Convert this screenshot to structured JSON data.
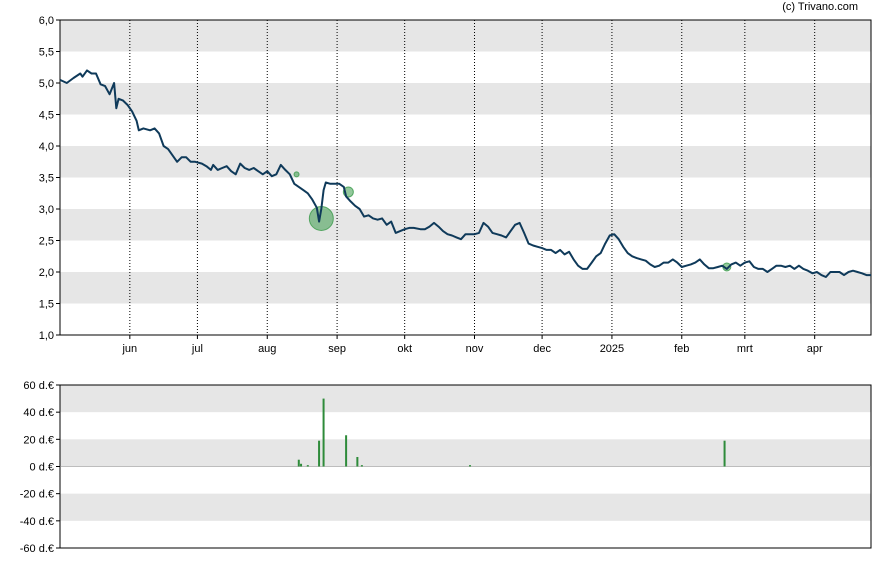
{
  "credit": "(c) Trivano.com",
  "colors": {
    "band": "#e6e6e6",
    "line": "#0f3a5a",
    "volume": "#2e8b3a",
    "marker": "#3a9a4a"
  },
  "chart_data": [
    {
      "type": "line",
      "title": "",
      "ylim": [
        1.0,
        6.0
      ],
      "y_ticks": [
        "1,0",
        "1,5",
        "2,0",
        "2,5",
        "3,0",
        "3,5",
        "4,0",
        "4,5",
        "5,0",
        "5,5",
        "6,0"
      ],
      "x_ticks": [
        {
          "label": "jun",
          "day": 31
        },
        {
          "label": "jul",
          "day": 61
        },
        {
          "label": "aug",
          "day": 92
        },
        {
          "label": "sep",
          "day": 123
        },
        {
          "label": "okt",
          "day": 153
        },
        {
          "label": "nov",
          "day": 184
        },
        {
          "label": "dec",
          "day": 214
        },
        {
          "label": "2025",
          "day": 245
        },
        {
          "label": "feb",
          "day": 276
        },
        {
          "label": "mrt",
          "day": 304
        },
        {
          "label": "apr",
          "day": 335
        }
      ],
      "x_range_days": [
        0,
        360
      ],
      "grid": "vertical dotted at month starts, alternating horizontal bands",
      "series": [
        {
          "name": "",
          "points": [
            [
              0,
              5.05
            ],
            [
              3,
              5.0
            ],
            [
              6,
              5.08
            ],
            [
              9,
              5.15
            ],
            [
              10,
              5.1
            ],
            [
              12,
              5.2
            ],
            [
              14,
              5.15
            ],
            [
              16,
              5.15
            ],
            [
              18,
              4.98
            ],
            [
              20,
              4.95
            ],
            [
              22,
              4.82
            ],
            [
              24,
              5.0
            ],
            [
              25,
              4.6
            ],
            [
              26,
              4.75
            ],
            [
              28,
              4.72
            ],
            [
              30,
              4.65
            ],
            [
              32,
              4.55
            ],
            [
              34,
              4.4
            ],
            [
              35,
              4.25
            ],
            [
              37,
              4.28
            ],
            [
              40,
              4.25
            ],
            [
              42,
              4.28
            ],
            [
              44,
              4.2
            ],
            [
              46,
              4.0
            ],
            [
              48,
              3.95
            ],
            [
              50,
              3.85
            ],
            [
              52,
              3.75
            ],
            [
              54,
              3.82
            ],
            [
              56,
              3.82
            ],
            [
              58,
              3.75
            ],
            [
              60,
              3.75
            ],
            [
              63,
              3.72
            ],
            [
              65,
              3.68
            ],
            [
              67,
              3.62
            ],
            [
              68,
              3.7
            ],
            [
              70,
              3.62
            ],
            [
              72,
              3.65
            ],
            [
              74,
              3.68
            ],
            [
              76,
              3.6
            ],
            [
              78,
              3.55
            ],
            [
              80,
              3.72
            ],
            [
              82,
              3.65
            ],
            [
              84,
              3.62
            ],
            [
              86,
              3.65
            ],
            [
              88,
              3.6
            ],
            [
              90,
              3.55
            ],
            [
              92,
              3.6
            ],
            [
              94,
              3.52
            ],
            [
              96,
              3.55
            ],
            [
              98,
              3.7
            ],
            [
              100,
              3.62
            ],
            [
              102,
              3.55
            ],
            [
              104,
              3.4
            ],
            [
              106,
              3.35
            ],
            [
              108,
              3.3
            ],
            [
              110,
              3.25
            ],
            [
              112,
              3.15
            ],
            [
              114,
              3.02
            ],
            [
              115,
              2.8
            ],
            [
              116,
              3.0
            ],
            [
              117,
              3.3
            ],
            [
              118,
              3.42
            ],
            [
              120,
              3.4
            ],
            [
              122,
              3.4
            ],
            [
              124,
              3.4
            ],
            [
              126,
              3.35
            ],
            [
              127,
              3.2
            ],
            [
              129,
              3.12
            ],
            [
              131,
              3.05
            ],
            [
              133,
              3.0
            ],
            [
              135,
              2.88
            ],
            [
              137,
              2.9
            ],
            [
              139,
              2.85
            ],
            [
              141,
              2.83
            ],
            [
              143,
              2.85
            ],
            [
              145,
              2.75
            ],
            [
              147,
              2.8
            ],
            [
              149,
              2.62
            ],
            [
              151,
              2.65
            ],
            [
              153,
              2.68
            ],
            [
              155,
              2.7
            ],
            [
              157,
              2.7
            ],
            [
              160,
              2.68
            ],
            [
              162,
              2.68
            ],
            [
              164,
              2.72
            ],
            [
              166,
              2.78
            ],
            [
              168,
              2.72
            ],
            [
              170,
              2.65
            ],
            [
              172,
              2.6
            ],
            [
              174,
              2.58
            ],
            [
              176,
              2.55
            ],
            [
              178,
              2.52
            ],
            [
              180,
              2.6
            ],
            [
              182,
              2.6
            ],
            [
              184,
              2.6
            ],
            [
              186,
              2.62
            ],
            [
              188,
              2.78
            ],
            [
              190,
              2.72
            ],
            [
              192,
              2.62
            ],
            [
              194,
              2.6
            ],
            [
              196,
              2.58
            ],
            [
              198,
              2.55
            ],
            [
              200,
              2.65
            ],
            [
              202,
              2.75
            ],
            [
              204,
              2.78
            ],
            [
              206,
              2.62
            ],
            [
              208,
              2.45
            ],
            [
              210,
              2.42
            ],
            [
              212,
              2.4
            ],
            [
              214,
              2.38
            ],
            [
              216,
              2.35
            ],
            [
              218,
              2.35
            ],
            [
              220,
              2.3
            ],
            [
              222,
              2.35
            ],
            [
              224,
              2.28
            ],
            [
              226,
              2.32
            ],
            [
              228,
              2.2
            ],
            [
              230,
              2.1
            ],
            [
              232,
              2.05
            ],
            [
              234,
              2.05
            ],
            [
              236,
              2.15
            ],
            [
              238,
              2.25
            ],
            [
              240,
              2.3
            ],
            [
              242,
              2.45
            ],
            [
              244,
              2.58
            ],
            [
              246,
              2.6
            ],
            [
              248,
              2.52
            ],
            [
              250,
              2.4
            ],
            [
              252,
              2.3
            ],
            [
              254,
              2.25
            ],
            [
              256,
              2.22
            ],
            [
              258,
              2.2
            ],
            [
              260,
              2.18
            ],
            [
              262,
              2.12
            ],
            [
              264,
              2.08
            ],
            [
              266,
              2.1
            ],
            [
              268,
              2.15
            ],
            [
              270,
              2.15
            ],
            [
              272,
              2.2
            ],
            [
              274,
              2.15
            ],
            [
              276,
              2.08
            ],
            [
              278,
              2.1
            ],
            [
              280,
              2.12
            ],
            [
              282,
              2.15
            ],
            [
              284,
              2.2
            ],
            [
              286,
              2.12
            ],
            [
              288,
              2.06
            ],
            [
              290,
              2.06
            ],
            [
              292,
              2.08
            ],
            [
              294,
              2.1
            ],
            [
              296,
              2.05
            ],
            [
              298,
              2.12
            ],
            [
              300,
              2.15
            ],
            [
              302,
              2.1
            ],
            [
              304,
              2.15
            ],
            [
              306,
              2.17
            ],
            [
              308,
              2.08
            ],
            [
              310,
              2.05
            ],
            [
              312,
              2.05
            ],
            [
              314,
              2.0
            ],
            [
              316,
              2.05
            ],
            [
              318,
              2.1
            ],
            [
              320,
              2.1
            ],
            [
              322,
              2.08
            ],
            [
              324,
              2.1
            ],
            [
              326,
              2.05
            ],
            [
              328,
              2.1
            ],
            [
              330,
              2.05
            ],
            [
              332,
              2.02
            ],
            [
              334,
              1.98
            ],
            [
              336,
              2.0
            ],
            [
              338,
              1.95
            ],
            [
              340,
              1.92
            ],
            [
              342,
              2.0
            ],
            [
              344,
              2.0
            ],
            [
              346,
              2.0
            ],
            [
              348,
              1.95
            ],
            [
              350,
              2.0
            ],
            [
              352,
              2.02
            ],
            [
              354,
              2.0
            ],
            [
              356,
              1.98
            ],
            [
              358,
              1.95
            ],
            [
              360,
              1.95
            ]
          ]
        }
      ],
      "markers": [
        {
          "day": 105,
          "value": 3.55,
          "size": "tiny"
        },
        {
          "day": 116,
          "value": 2.85,
          "size": "large"
        },
        {
          "day": 128,
          "value": 3.27,
          "size": "medium"
        },
        {
          "day": 296,
          "value": 2.08,
          "size": "small"
        }
      ]
    },
    {
      "type": "bar",
      "ylabel": "",
      "ylim": [
        -60,
        60
      ],
      "y_ticks": [
        "60 d.€",
        "40 d.€",
        "20 d.€",
        "0 d.€",
        "-20 d.€",
        "-40 d.€",
        "-60 d.€"
      ],
      "x_range_days": [
        0,
        360
      ],
      "bars": [
        {
          "day": 106,
          "value": 5
        },
        {
          "day": 107,
          "value": 2
        },
        {
          "day": 110,
          "value": 1
        },
        {
          "day": 115,
          "value": 19
        },
        {
          "day": 117,
          "value": 50
        },
        {
          "day": 127,
          "value": 23
        },
        {
          "day": 132,
          "value": 7
        },
        {
          "day": 134,
          "value": 1
        },
        {
          "day": 182,
          "value": 1
        },
        {
          "day": 295,
          "value": 19
        }
      ]
    }
  ]
}
